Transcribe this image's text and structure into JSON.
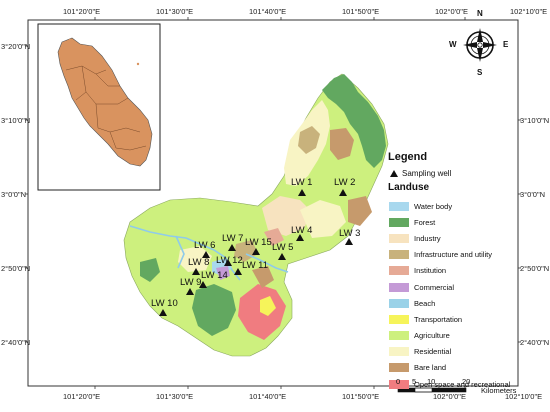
{
  "top_ticks": [
    "101°20'0\"E",
    "101°30'0\"E",
    "101°40'0\"E",
    "101°50'0\"E",
    "102°0'0\"E",
    "102°10'0\"E"
  ],
  "bottom_ticks": [
    "101°20'0\"E",
    "101°30'0\"E",
    "101°40'0\"E",
    "101°50'0\"E",
    "102°0'0\"E",
    "102°10'0\"E"
  ],
  "left_ticks": [
    "3°20'0\"N",
    "3°10'0\"N",
    "3°0'0\"N",
    "2°50'0\"N",
    "2°40'0\"N"
  ],
  "right_ticks": [
    "3°10'0\"N",
    "3°0'0\"N",
    "2°50'0\"N",
    "2°40'0\"N"
  ],
  "wells": [
    "LW 1",
    "LW 2",
    "LW 3",
    "LW 4",
    "LW 5",
    "LW 6",
    "LW 7",
    "LW 8",
    "LW 9",
    "LW 10",
    "LW 11",
    "LW 12",
    "LW 14",
    "LW 15"
  ],
  "legend": {
    "title": "Legend",
    "well_label": "Sampling well",
    "landuse_title": "Landuse",
    "items": [
      {
        "label": "Water body",
        "color": "#a8d8ee"
      },
      {
        "label": "Forest",
        "color": "#62a860"
      },
      {
        "label": "Industry",
        "color": "#f7e3bf"
      },
      {
        "label": "Infrastructure and utility",
        "color": "#c8b27c"
      },
      {
        "label": "Institution",
        "color": "#e6aa96"
      },
      {
        "label": "Commercial",
        "color": "#c49ad6"
      },
      {
        "label": "Beach",
        "color": "#9ad2e8"
      },
      {
        "label": "Transportation",
        "color": "#f6f45a"
      },
      {
        "label": "Agriculture",
        "color": "#cdf07e"
      },
      {
        "label": "Residential",
        "color": "#f8f4c4"
      },
      {
        "label": "Bare land",
        "color": "#c69a6c"
      },
      {
        "label": "Open space and recreational",
        "color": "#f07c80"
      }
    ]
  },
  "compass": {
    "n": "N",
    "s": "S",
    "w": "W",
    "e": "E"
  },
  "scale": {
    "ticks": [
      "0",
      "5",
      "10",
      "20"
    ],
    "unit": "Kilometers"
  }
}
